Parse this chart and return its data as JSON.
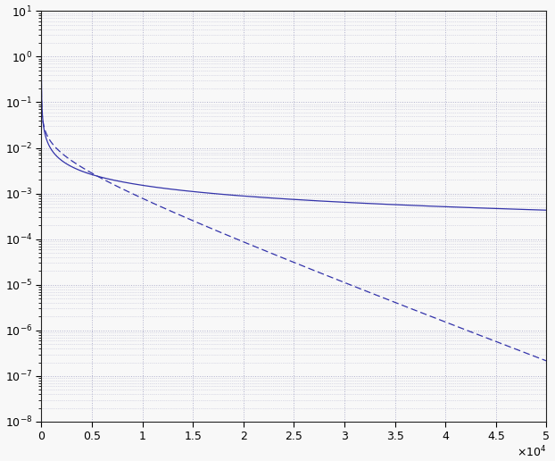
{
  "xlim": [
    0,
    50000
  ],
  "ylim_log": [
    -8,
    1
  ],
  "xticks": [
    0,
    5000,
    10000,
    15000,
    20000,
    25000,
    30000,
    35000,
    40000,
    45000,
    50000
  ],
  "xticklabels": [
    "0",
    "0.5",
    "1",
    "1.5",
    "2",
    "2.5",
    "3",
    "3.5",
    "4",
    "4.5",
    "5"
  ],
  "n_points": 50000,
  "line_color": "#3333aa",
  "background_color": "#f8f8f8",
  "grid_color": "#b0b0cc",
  "solid_scale": 2.0,
  "solid_exponent": 0.78,
  "dashed_scale": 0.5,
  "dashed_exponent": 0.5,
  "dashed_rate": 0.000185
}
